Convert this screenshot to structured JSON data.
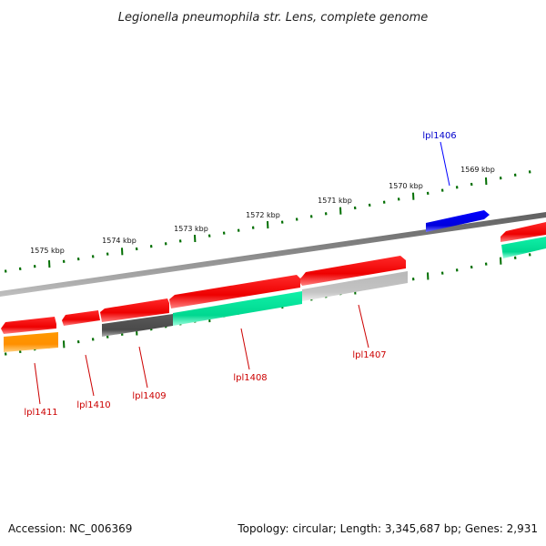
{
  "title": "Legionella pneumophila str. Lens, complete genome",
  "footer": {
    "accession": "Accession: NC_006369",
    "summary": "Topology: circular; Length: 3,345,687 bp; Genes: 2,931"
  },
  "scale": {
    "unit": "kbp",
    "tick_labels": [
      "1569 kbp",
      "1570 kbp",
      "1571 kbp",
      "1572 kbp",
      "1573 kbp",
      "1574 kbp",
      "1575 kbp"
    ]
  },
  "genes": [
    {
      "name": "lpl1406",
      "color": "#0000ff"
    },
    {
      "name": "lpl1407",
      "color": "#cc0000"
    },
    {
      "name": "lpl1408",
      "color": "#cc0000"
    },
    {
      "name": "lpl1409",
      "color": "#cc0000"
    },
    {
      "name": "lpl1410",
      "color": "#cc0000"
    },
    {
      "name": "lpl1411",
      "color": "#cc0000"
    }
  ],
  "colors": {
    "backbone": "#808080",
    "ticks": "#006e00",
    "cds": "#ff0000",
    "cds_blue": "#0000ff",
    "gc_high": "#00d890",
    "gc_low_dark": "#606060",
    "gc_low_light": "#c0c0c0",
    "orange": "#ff9900"
  }
}
